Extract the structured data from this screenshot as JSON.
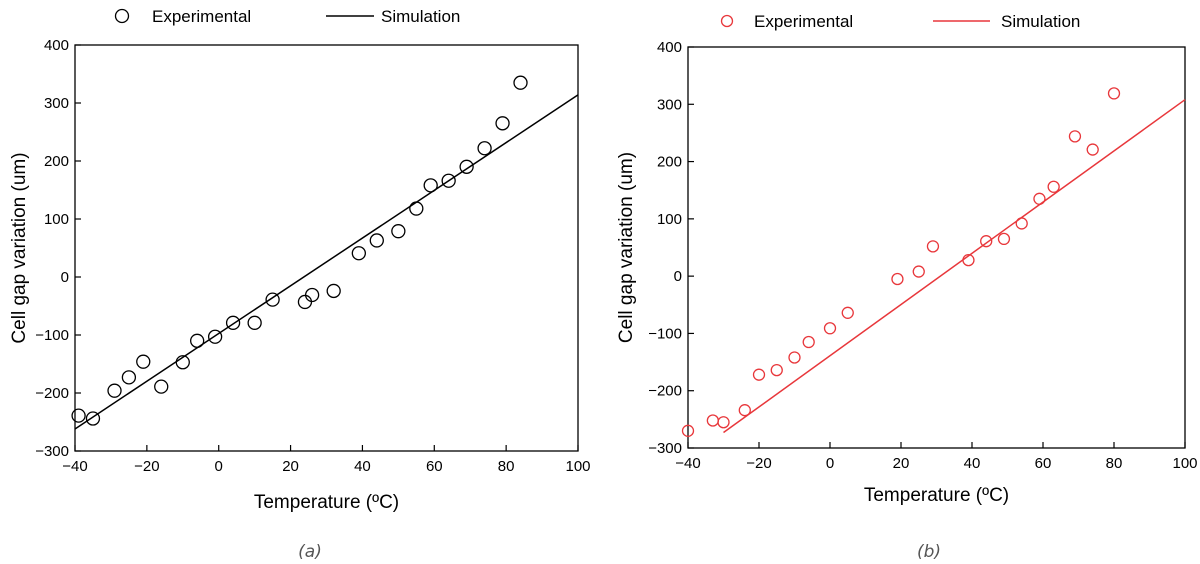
{
  "chart_data": [
    {
      "type": "scatter",
      "caption": "(a)",
      "xlabel": "Temperature (ºC)",
      "ylabel": "Cell gap variation (um)",
      "xlim": [
        -40,
        100
      ],
      "ylim": [
        -300,
        400
      ],
      "xticks": [
        -40,
        -20,
        0,
        20,
        40,
        60,
        80,
        100
      ],
      "yticks": [
        -300,
        -200,
        -100,
        0,
        100,
        200,
        300,
        400
      ],
      "x_tick_labels": [
        "−40",
        "−20",
        "0",
        "20",
        "40",
        "60",
        "80",
        "100"
      ],
      "y_tick_labels": [
        "−300",
        "−200",
        "−100",
        "0",
        "100",
        "200",
        "300",
        "400"
      ],
      "legend_position": "top",
      "color": "#000000",
      "series": [
        {
          "name": "Experimental",
          "kind": "markers",
          "x": [
            -39,
            -35,
            -29,
            -25,
            -21,
            -16,
            -10,
            -6,
            -1,
            4,
            10,
            15,
            24,
            26,
            32,
            39,
            44,
            50,
            55,
            59,
            64,
            69,
            74,
            79,
            84
          ],
          "y": [
            -239,
            -244,
            -196,
            -173,
            -146,
            -189,
            -147,
            -110,
            -103,
            -79,
            -79,
            -39,
            -43,
            -31,
            -24,
            41,
            63,
            79,
            118,
            158,
            166,
            190,
            222,
            265,
            335
          ]
        },
        {
          "name": "Simulation",
          "kind": "line",
          "x": [
            -40,
            100
          ],
          "y": [
            -262,
            314
          ]
        }
      ]
    },
    {
      "type": "scatter",
      "caption": "(b)",
      "xlabel": "Temperature (ºC)",
      "ylabel": "Cell gap variation (um)",
      "xlim": [
        -40,
        100
      ],
      "ylim": [
        -300,
        400
      ],
      "xticks": [
        -40,
        -20,
        0,
        20,
        40,
        60,
        80,
        100
      ],
      "yticks": [
        -300,
        -200,
        -100,
        0,
        100,
        200,
        300,
        400
      ],
      "x_tick_labels": [
        "−40",
        "−20",
        "0",
        "20",
        "40",
        "60",
        "80",
        "100"
      ],
      "y_tick_labels": [
        "−300",
        "−200",
        "−100",
        "0",
        "100",
        "200",
        "300",
        "400"
      ],
      "legend_position": "top",
      "color": "#e8373b",
      "series": [
        {
          "name": "Experimental",
          "kind": "markers",
          "x": [
            -40,
            -33,
            -30,
            -24,
            -20,
            -15,
            -10,
            -6,
            0,
            5,
            19,
            25,
            29,
            39,
            44,
            49,
            54,
            59,
            63,
            69,
            74,
            80
          ],
          "y": [
            -270,
            -252,
            -255,
            -234,
            -172,
            -164,
            -142,
            -115,
            -91,
            -64,
            -5,
            8,
            52,
            28,
            61,
            65,
            92,
            135,
            156,
            244,
            221,
            319
          ]
        },
        {
          "name": "Simulation",
          "kind": "line",
          "x": [
            -30,
            100
          ],
          "y": [
            -273,
            308
          ]
        }
      ]
    }
  ]
}
